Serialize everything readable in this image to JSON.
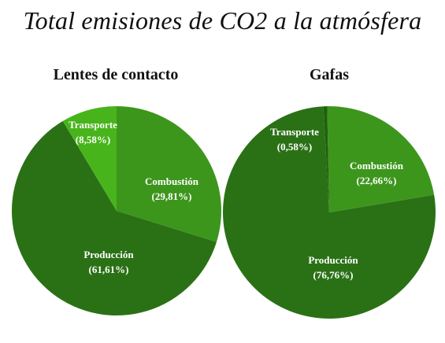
{
  "title": "Total emisiones de CO2 a la atmósfera",
  "colors": {
    "produccion": "#2a7116",
    "combustion": "#3d961c",
    "transporte_left": "#48b41b",
    "transporte_right": "#1f6010",
    "text": "#ffffff"
  },
  "chart_data": [
    {
      "type": "pie",
      "title": "Lentes de contacto",
      "slices": [
        {
          "label": "Combustión",
          "value": 29.81,
          "value_text": "(29,81%)",
          "color": "#3d961c"
        },
        {
          "label": "Producción",
          "value": 61.61,
          "value_text": "(61,61%)",
          "color": "#2a7116"
        },
        {
          "label": "Transporte",
          "value": 8.58,
          "value_text": "(8,58%)",
          "color": "#48b41b"
        }
      ]
    },
    {
      "type": "pie",
      "title": "Gafas",
      "slices": [
        {
          "label": "Combustión",
          "value": 22.66,
          "value_text": "(22,66%)",
          "color": "#3d961c"
        },
        {
          "label": "Producción",
          "value": 76.76,
          "value_text": "(76,76%)",
          "color": "#2a7116"
        },
        {
          "label": "Transporte",
          "value": 0.58,
          "value_text": "(0,58%)",
          "color": "#1f6010"
        }
      ]
    }
  ]
}
